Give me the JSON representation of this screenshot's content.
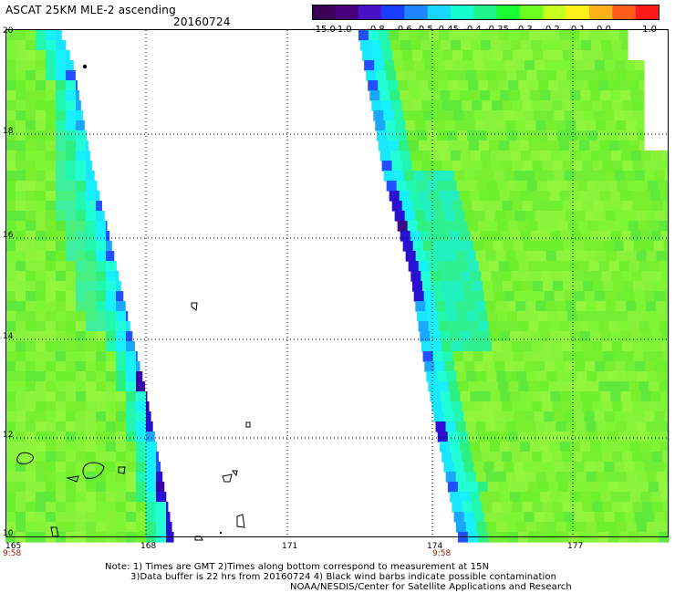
{
  "title": "ASCAT 25KM MLE-2 ascending",
  "date": "20160724",
  "colorbar": {
    "tick_labels": [
      "-15.0",
      "-1.0",
      "-0.8",
      "-0.6",
      "-0.5",
      "-0.45",
      "-0.4",
      "-0.35",
      "-0.3",
      "-0.2",
      "-0.1",
      "0.0",
      "1.0"
    ],
    "colors": [
      "#3a0056",
      "#48007a",
      "#4a10c8",
      "#1a3cff",
      "#1f86ff",
      "#19d6ff",
      "#16ffd0",
      "#1ef28a",
      "#19ff33",
      "#6aff1f",
      "#c8ff1e",
      "#fff21a",
      "#ffb31a",
      "#ff5c1a",
      "#ff1a1a"
    ]
  },
  "map": {
    "lon_labels": [
      "165",
      "168",
      "171",
      "174",
      "177"
    ],
    "lat_labels": [
      "20",
      "18",
      "16",
      "14",
      "12",
      "10"
    ],
    "time_labels": [
      "9:58",
      "9:58"
    ],
    "background_color": "#ffffff",
    "swath_base_color": "#7ef02e"
  },
  "notes": {
    "line1": "Note: 1) Times are GMT 2)Times along bottom correspond to measurement at 15N",
    "line2": "3)Data buffer is 22 hrs from 20160724 4) Black wind barbs indicate possible contamination",
    "line3": "NOAA/NESDIS/Center for Satellite Applications and Research"
  }
}
